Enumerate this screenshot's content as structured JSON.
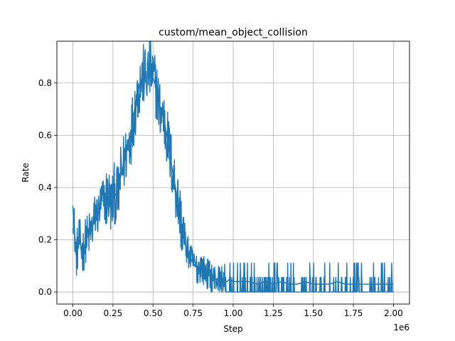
{
  "chart_data": {
    "type": "line",
    "title": "custom/mean_object_collision",
    "xlabel": "Step",
    "ylabel": "Rate",
    "x_offset_label": "1e6",
    "xlim": [
      -0.1,
      2.1
    ],
    "ylim": [
      -0.046,
      0.96
    ],
    "x_ticks": [
      0.0,
      0.25,
      0.5,
      0.75,
      1.0,
      1.25,
      1.5,
      1.75,
      2.0
    ],
    "x_tick_labels": [
      "0.00",
      "0.25",
      "0.50",
      "0.75",
      "1.00",
      "1.25",
      "1.50",
      "1.75",
      "2.00"
    ],
    "y_ticks": [
      0.0,
      0.2,
      0.4,
      0.6,
      0.8
    ],
    "y_tick_labels": [
      "0.0",
      "0.2",
      "0.4",
      "0.6",
      "0.8"
    ],
    "grid": true,
    "color": "#1f77b4",
    "series": [
      {
        "name": "",
        "x": [
          0.0,
          0.02,
          0.04,
          0.06,
          0.08,
          0.1,
          0.12,
          0.14,
          0.16,
          0.18,
          0.2,
          0.22,
          0.24,
          0.26,
          0.28,
          0.3,
          0.32,
          0.34,
          0.36,
          0.38,
          0.4,
          0.42,
          0.44,
          0.46,
          0.48,
          0.5,
          0.52,
          0.54,
          0.56,
          0.58,
          0.6,
          0.62,
          0.64,
          0.66,
          0.68,
          0.7,
          0.72,
          0.74,
          0.76,
          0.78,
          0.8,
          0.82,
          0.84,
          0.86,
          0.88,
          0.9,
          0.92,
          0.94,
          0.96,
          0.98,
          1.0,
          1.05,
          1.1,
          1.15,
          1.2,
          1.25,
          1.3,
          1.35,
          1.4,
          1.45,
          1.5,
          1.55,
          1.6,
          1.65,
          1.7,
          1.75,
          1.8,
          1.85,
          1.9,
          1.95,
          2.0
        ],
        "y": [
          0.33,
          0.14,
          0.2,
          0.15,
          0.2,
          0.22,
          0.24,
          0.3,
          0.3,
          0.35,
          0.35,
          0.37,
          0.33,
          0.38,
          0.36,
          0.45,
          0.5,
          0.55,
          0.6,
          0.68,
          0.75,
          0.8,
          0.83,
          0.82,
          0.85,
          0.82,
          0.78,
          0.7,
          0.68,
          0.62,
          0.55,
          0.47,
          0.4,
          0.33,
          0.25,
          0.18,
          0.15,
          0.12,
          0.1,
          0.09,
          0.1,
          0.08,
          0.07,
          0.06,
          0.05,
          0.05,
          0.04,
          0.05,
          0.04,
          0.05,
          0.04,
          0.04,
          0.04,
          0.03,
          0.04,
          0.03,
          0.04,
          0.03,
          0.03,
          0.04,
          0.03,
          0.03,
          0.03,
          0.04,
          0.03,
          0.03,
          0.03,
          0.03,
          0.03,
          0.03,
          0.03
        ]
      }
    ]
  }
}
